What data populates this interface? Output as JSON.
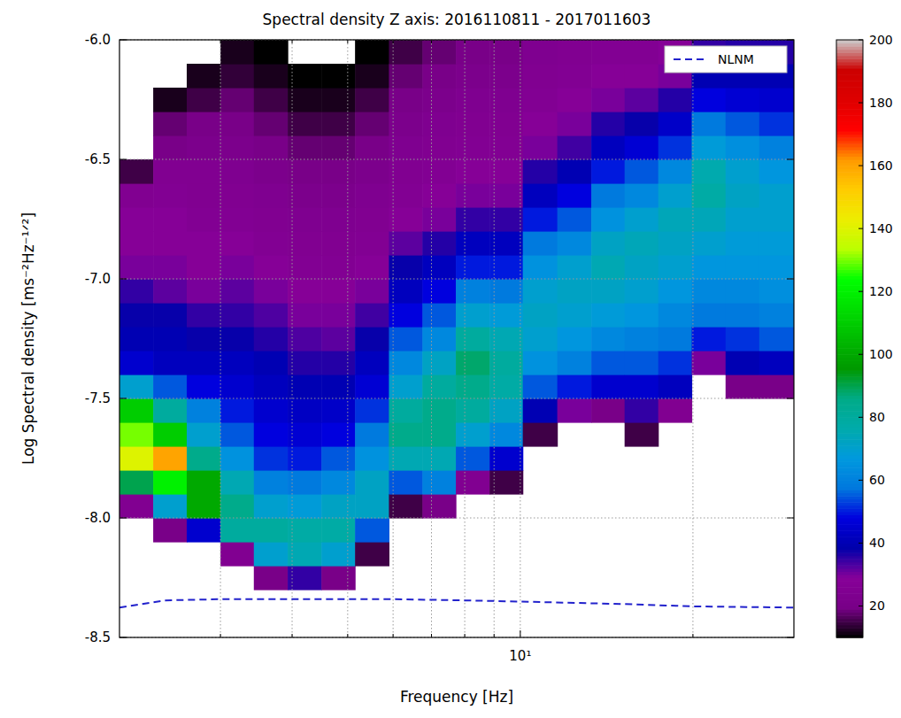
{
  "chart_data": {
    "type": "heatmap",
    "title": "Spectral density Z axis: 2016110811 - 2017011603",
    "x_label": "Frequency [Hz]",
    "y_label": "Log Spectral density [ms⁻²Hz⁻¹ᐟ²]",
    "log": "x",
    "grid": true,
    "legend": "upper right",
    "xlim": [
      2,
      30
    ],
    "ylim": [
      -8.5,
      -6
    ],
    "xticks": [
      {
        "value": 3,
        "label": null
      },
      {
        "value": 4,
        "label": null
      },
      {
        "value": 5,
        "label": null
      },
      {
        "value": 6,
        "label": null
      },
      {
        "value": 7,
        "label": null
      },
      {
        "value": 8,
        "label": null
      },
      {
        "value": 9,
        "label": null
      },
      {
        "value": 10,
        "label": "10¹"
      },
      {
        "value": 20,
        "label": null
      }
    ],
    "yticks": [
      {
        "value": -8,
        "label": "-8.0"
      },
      -8.5,
      -7.5,
      {
        "value": -7,
        "label": "-7.0"
      },
      -6.5,
      {
        "value": -6,
        "label": "-6.0"
      }
    ],
    "x_bins": [
      2,
      2.29,
      2.62,
      3,
      3.43,
      3.93,
      4.5,
      5.15,
      5.9,
      6.75,
      7.72,
      8.84,
      10.1,
      11.6,
      13.3,
      15.2,
      17.4,
      19.9,
      22.8,
      26.1,
      30
    ],
    "y_bins": [
      -8.5,
      -8.4,
      -8.3,
      -8.2,
      -8.1,
      -8.0,
      -7.9,
      -7.8,
      -7.7,
      -7.6,
      -7.5,
      -7.4,
      -7.3,
      -7.2,
      -7.1,
      -7.0,
      -6.9,
      -6.8,
      -6.7,
      -6.6,
      -6.5,
      -6.4,
      -6.3,
      -6.2,
      -6.1,
      -6.0
    ],
    "z": [
      [
        0,
        0,
        0,
        0,
        0,
        25,
        90,
        140,
        130,
        110,
        70,
        45,
        40,
        38,
        35,
        30,
        28,
        28,
        25,
        15,
        0,
        0,
        0,
        0,
        0
      ],
      [
        0,
        0,
        0,
        0,
        20,
        70,
        120,
        160,
        110,
        80,
        55,
        42,
        40,
        38,
        32,
        30,
        28,
        28,
        26,
        25,
        20,
        18,
        12,
        0,
        0
      ],
      [
        0,
        0,
        0,
        0,
        45,
        100,
        100,
        85,
        70,
        60,
        48,
        42,
        38,
        35,
        30,
        28,
        28,
        26,
        25,
        25,
        22,
        20,
        15,
        12,
        0
      ],
      [
        0,
        0,
        0,
        25,
        80,
        85,
        75,
        65,
        55,
        50,
        45,
        42,
        38,
        35,
        32,
        30,
        28,
        26,
        25,
        24,
        22,
        20,
        18,
        14,
        12
      ],
      [
        0,
        0,
        20,
        70,
        80,
        70,
        60,
        52,
        48,
        45,
        42,
        40,
        36,
        33,
        30,
        28,
        26,
        25,
        24,
        22,
        20,
        18,
        15,
        12,
        10
      ],
      [
        0,
        0,
        35,
        75,
        78,
        68,
        58,
        50,
        46,
        43,
        40,
        36,
        33,
        30,
        28,
        26,
        25,
        24,
        22,
        20,
        18,
        15,
        12,
        10,
        0
      ],
      [
        0,
        0,
        20,
        70,
        78,
        72,
        62,
        55,
        48,
        44,
        40,
        36,
        32,
        30,
        28,
        26,
        25,
        24,
        22,
        20,
        18,
        15,
        12,
        10,
        0
      ],
      [
        0,
        0,
        0,
        15,
        55,
        72,
        72,
        65,
        58,
        52,
        46,
        42,
        38,
        34,
        30,
        28,
        26,
        25,
        24,
        22,
        20,
        18,
        15,
        12,
        10
      ],
      [
        0,
        0,
        0,
        0,
        0,
        15,
        55,
        75,
        85,
        80,
        70,
        62,
        55,
        48,
        42,
        38,
        32,
        28,
        26,
        25,
        24,
        22,
        20,
        18,
        15
      ],
      [
        0,
        0,
        0,
        0,
        0,
        20,
        60,
        75,
        85,
        85,
        80,
        72,
        62,
        55,
        48,
        42,
        36,
        30,
        28,
        26,
        25,
        24,
        22,
        20,
        18
      ],
      [
        0,
        0,
        0,
        0,
        0,
        0,
        25,
        55,
        70,
        80,
        85,
        88,
        80,
        70,
        60,
        50,
        42,
        35,
        30,
        28,
        26,
        25,
        24,
        22,
        20
      ],
      [
        0,
        0,
        0,
        0,
        0,
        0,
        15,
        45,
        62,
        72,
        78,
        80,
        75,
        68,
        58,
        50,
        42,
        35,
        30,
        28,
        26,
        25,
        24,
        22,
        20
      ],
      [
        0,
        0,
        0,
        0,
        0,
        0,
        0,
        0,
        15,
        40,
        55,
        65,
        70,
        72,
        70,
        65,
        58,
        50,
        42,
        36,
        30,
        28,
        26,
        25,
        24
      ],
      [
        0,
        0,
        0,
        0,
        0,
        0,
        0,
        0,
        0,
        30,
        50,
        60,
        66,
        70,
        72,
        70,
        62,
        55,
        48,
        40,
        34,
        30,
        28,
        26,
        25
      ],
      [
        0,
        0,
        0,
        0,
        0,
        0,
        0,
        0,
        0,
        20,
        45,
        55,
        62,
        68,
        72,
        75,
        72,
        65,
        58,
        50,
        42,
        36,
        30,
        28,
        26
      ],
      [
        0,
        0,
        0,
        0,
        0,
        0,
        0,
        0,
        15,
        35,
        45,
        55,
        60,
        66,
        70,
        72,
        74,
        70,
        62,
        55,
        46,
        38,
        32,
        28,
        26
      ],
      [
        0,
        0,
        0,
        0,
        0,
        0,
        0,
        0,
        0,
        25,
        42,
        52,
        58,
        62,
        66,
        70,
        72,
        74,
        70,
        62,
        52,
        44,
        36,
        30,
        28
      ],
      [
        0,
        0,
        0,
        0,
        0,
        0,
        0,
        0,
        0,
        0,
        0,
        30,
        50,
        58,
        62,
        66,
        70,
        74,
        78,
        76,
        68,
        58,
        48,
        40,
        35
      ],
      [
        0,
        0,
        0,
        0,
        0,
        0,
        0,
        0,
        0,
        0,
        20,
        40,
        52,
        58,
        62,
        66,
        68,
        70,
        72,
        70,
        64,
        55,
        46,
        40,
        36
      ],
      [
        0,
        0,
        0,
        0,
        0,
        0,
        0,
        0,
        0,
        0,
        20,
        42,
        55,
        60,
        64,
        66,
        68,
        70,
        70,
        66,
        60,
        52,
        45,
        40,
        36
      ]
    ],
    "colorbar": {
      "range": [
        10,
        200
      ],
      "ticks": [
        20,
        40,
        60,
        80,
        100,
        120,
        140,
        160,
        180,
        200
      ]
    },
    "series": [
      {
        "name": "NLNM",
        "color": "#2222cc",
        "line_style": "dashed",
        "x": [
          2,
          2.4,
          3,
          4,
          6,
          8,
          10,
          15,
          20,
          30
        ],
        "values": [
          -8.375,
          -8.345,
          -8.34,
          -8.34,
          -8.34,
          -8.345,
          -8.35,
          -8.36,
          -8.37,
          -8.375
        ]
      }
    ]
  }
}
